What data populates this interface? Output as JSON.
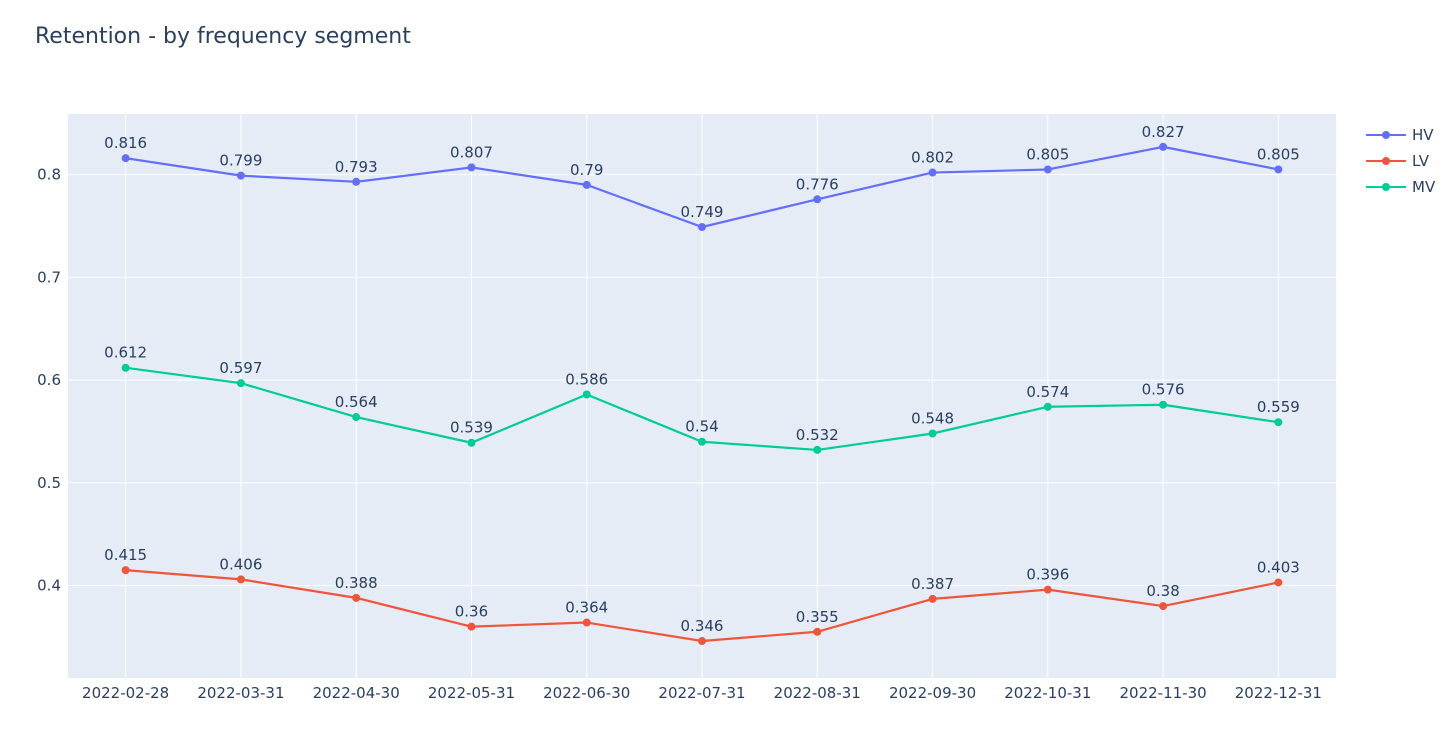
{
  "chart_data": {
    "type": "line",
    "title": "Retention - by frequency segment",
    "xlabel": "",
    "ylabel": "",
    "categories": [
      "2022-02-28",
      "2022-03-31",
      "2022-04-30",
      "2022-05-31",
      "2022-06-30",
      "2022-07-31",
      "2022-08-31",
      "2022-09-30",
      "2022-10-31",
      "2022-11-30",
      "2022-12-31"
    ],
    "ylim": [
      0.31,
      0.859
    ],
    "yticks": [
      0.4,
      0.5,
      0.6,
      0.7,
      0.8
    ],
    "ytick_labels": [
      "0.4",
      "0.5",
      "0.6",
      "0.7",
      "0.8"
    ],
    "grid": true,
    "legend_position": "top-right",
    "series": [
      {
        "name": "HV",
        "color": "#636efa",
        "values": [
          0.816,
          0.799,
          0.793,
          0.807,
          0.79,
          0.749,
          0.776,
          0.802,
          0.805,
          0.827,
          0.805
        ],
        "labels": [
          "0.816",
          "0.799",
          "0.793",
          "0.807",
          "0.79",
          "0.749",
          "0.776",
          "0.802",
          "0.805",
          "0.827",
          "0.805"
        ]
      },
      {
        "name": "LV",
        "color": "#ef553b",
        "values": [
          0.415,
          0.406,
          0.388,
          0.36,
          0.364,
          0.346,
          0.355,
          0.387,
          0.396,
          0.38,
          0.403
        ],
        "labels": [
          "0.415",
          "0.406",
          "0.388",
          "0.36",
          "0.364",
          "0.346",
          "0.355",
          "0.387",
          "0.396",
          "0.38",
          "0.403"
        ]
      },
      {
        "name": "MV",
        "color": "#00cc96",
        "values": [
          0.612,
          0.597,
          0.564,
          0.539,
          0.586,
          0.54,
          0.532,
          0.548,
          0.574,
          0.576,
          0.559
        ],
        "labels": [
          "0.612",
          "0.597",
          "0.564",
          "0.539",
          "0.586",
          "0.54",
          "0.532",
          "0.548",
          "0.574",
          "0.576",
          "0.559"
        ]
      }
    ]
  }
}
